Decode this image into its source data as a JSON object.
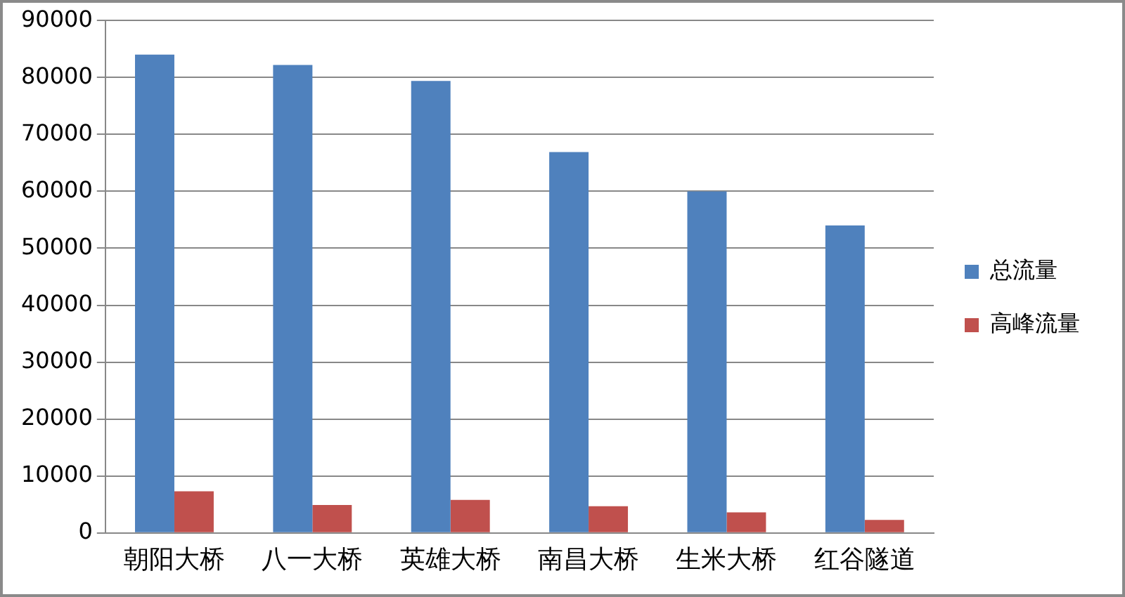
{
  "chart_data": {
    "type": "bar",
    "categories": [
      "朝阳大桥",
      "八一大桥",
      "英雄大桥",
      "南昌大桥",
      "生米大桥",
      "红谷隧道"
    ],
    "series": [
      {
        "name": "总流量",
        "color": "#4f81bd",
        "values": [
          84000,
          82200,
          79400,
          66900,
          60000,
          54000
        ]
      },
      {
        "name": "高峰流量",
        "color": "#c0504d",
        "values": [
          7300,
          4900,
          5800,
          4700,
          3600,
          2300
        ]
      }
    ],
    "ylim": [
      0,
      90000
    ],
    "yticks": [
      0,
      10000,
      20000,
      30000,
      40000,
      50000,
      60000,
      70000,
      80000,
      90000
    ],
    "grid": "y",
    "legend": "right"
  }
}
